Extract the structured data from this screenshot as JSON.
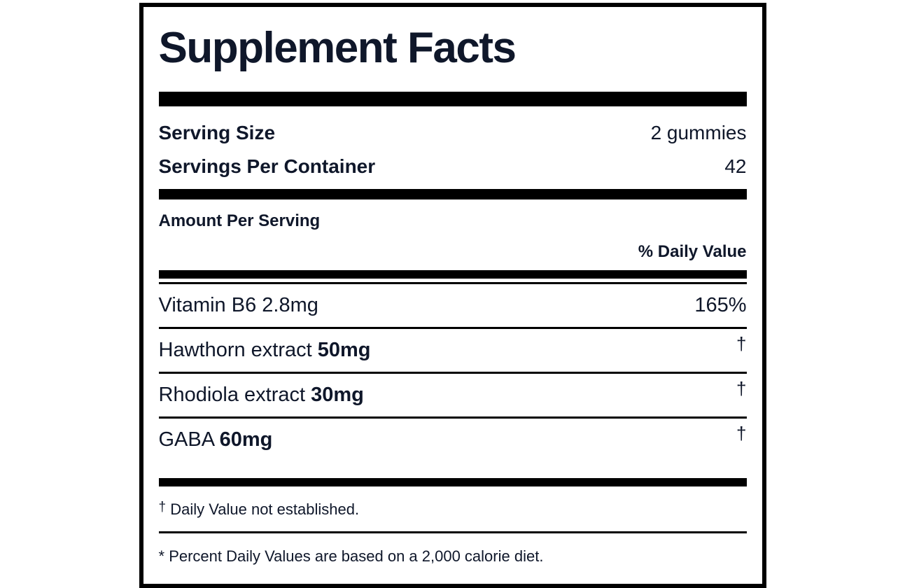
{
  "label": {
    "title": "Supplement Facts",
    "serving": {
      "size_label": "Serving Size",
      "size_value": "2 gummies",
      "per_container_label": "Servings Per Container",
      "per_container_value": "42"
    },
    "amount_per_serving_heading": "Amount Per Serving",
    "daily_value_heading": "% Daily Value",
    "ingredients": [
      {
        "name": "Vitamin B6",
        "amount": "2.8mg",
        "daily_value": "165%"
      },
      {
        "name": "Hawthorn extract",
        "amount": "50mg",
        "daily_value": "†"
      },
      {
        "name": "Rhodiola extract",
        "amount": "30mg",
        "daily_value": "†"
      },
      {
        "name": "GABA",
        "amount": "60mg",
        "daily_value": "†"
      }
    ],
    "footnotes": [
      {
        "marker": "†",
        "text": "Daily Value not established."
      },
      {
        "marker": "*",
        "text": "Percent Daily Values are based on a 2,000 calorie diet."
      }
    ],
    "colors": {
      "text": "#0f172a",
      "rule": "#000000",
      "background": "#ffffff"
    }
  }
}
